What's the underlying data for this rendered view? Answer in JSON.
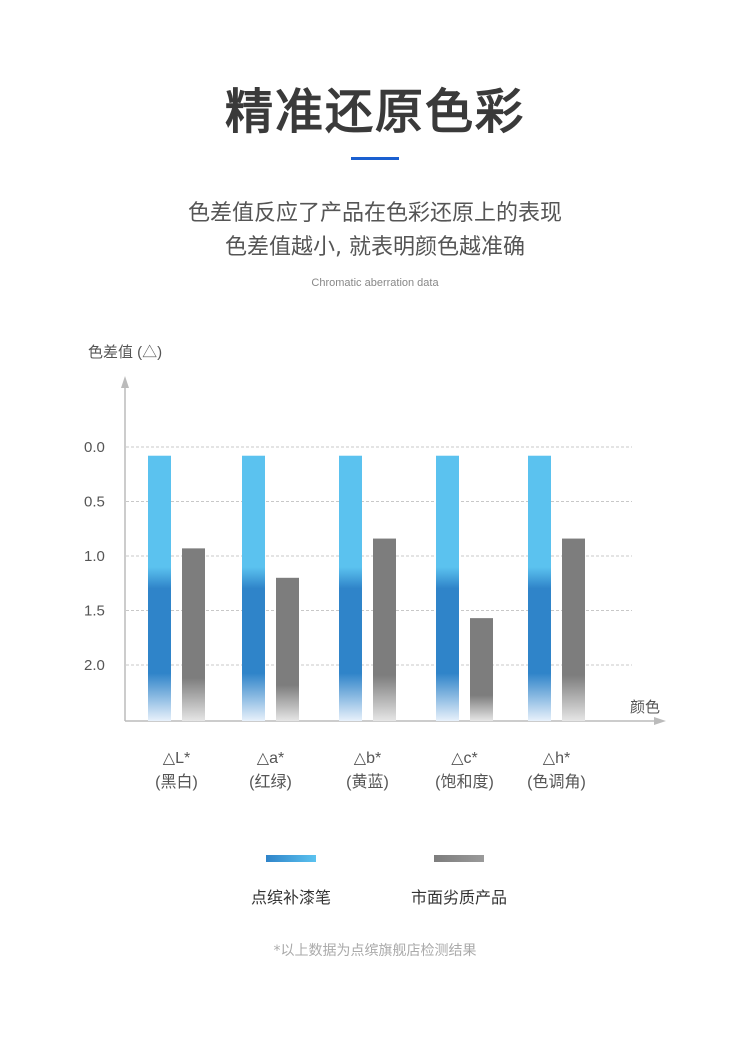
{
  "header": {
    "title": "精准还原色彩",
    "subtitle_line1": "色差值反应了产品在色彩还原上的表现",
    "subtitle_line2": "色差值越小, 就表明颜色越准确",
    "english": "Chromatic aberration data"
  },
  "colors": {
    "accent": "#1a5fd0",
    "series1_top": "#5bc2ef",
    "series1_bottom": "#2f84c9",
    "series2": "#7d7d7d",
    "grid": "#c8c8c8",
    "axis": "#bbbbbb"
  },
  "chart_data": {
    "type": "bar",
    "ylabel": "色差值 (△)",
    "xlabel": "颜色",
    "y_ticks": [
      "0.0",
      "0.5",
      "1.0",
      "1.5",
      "2.0"
    ],
    "ylim": [
      0,
      2.5
    ],
    "y_inverted": true,
    "grid": true,
    "categories": [
      {
        "symbol": "△L*",
        "name": "(黑白)"
      },
      {
        "symbol": "△a*",
        "name": "(红绿)"
      },
      {
        "symbol": "△b*",
        "name": "(黄蓝)"
      },
      {
        "symbol": "△c*",
        "name": "(饱和度)"
      },
      {
        "symbol": "△h*",
        "name": "(色调角)"
      }
    ],
    "series": [
      {
        "name": "点缤补漆笔",
        "values": [
          0.08,
          0.08,
          0.08,
          0.08,
          0.08
        ]
      },
      {
        "name": "市面劣质产品",
        "values": [
          0.93,
          1.2,
          0.84,
          1.57,
          0.84
        ]
      }
    ]
  },
  "legend": {
    "series1_label": "点缤补漆笔",
    "series2_label": "市面劣质产品"
  },
  "footnote": "*以上数据为点缤旗舰店检测结果"
}
